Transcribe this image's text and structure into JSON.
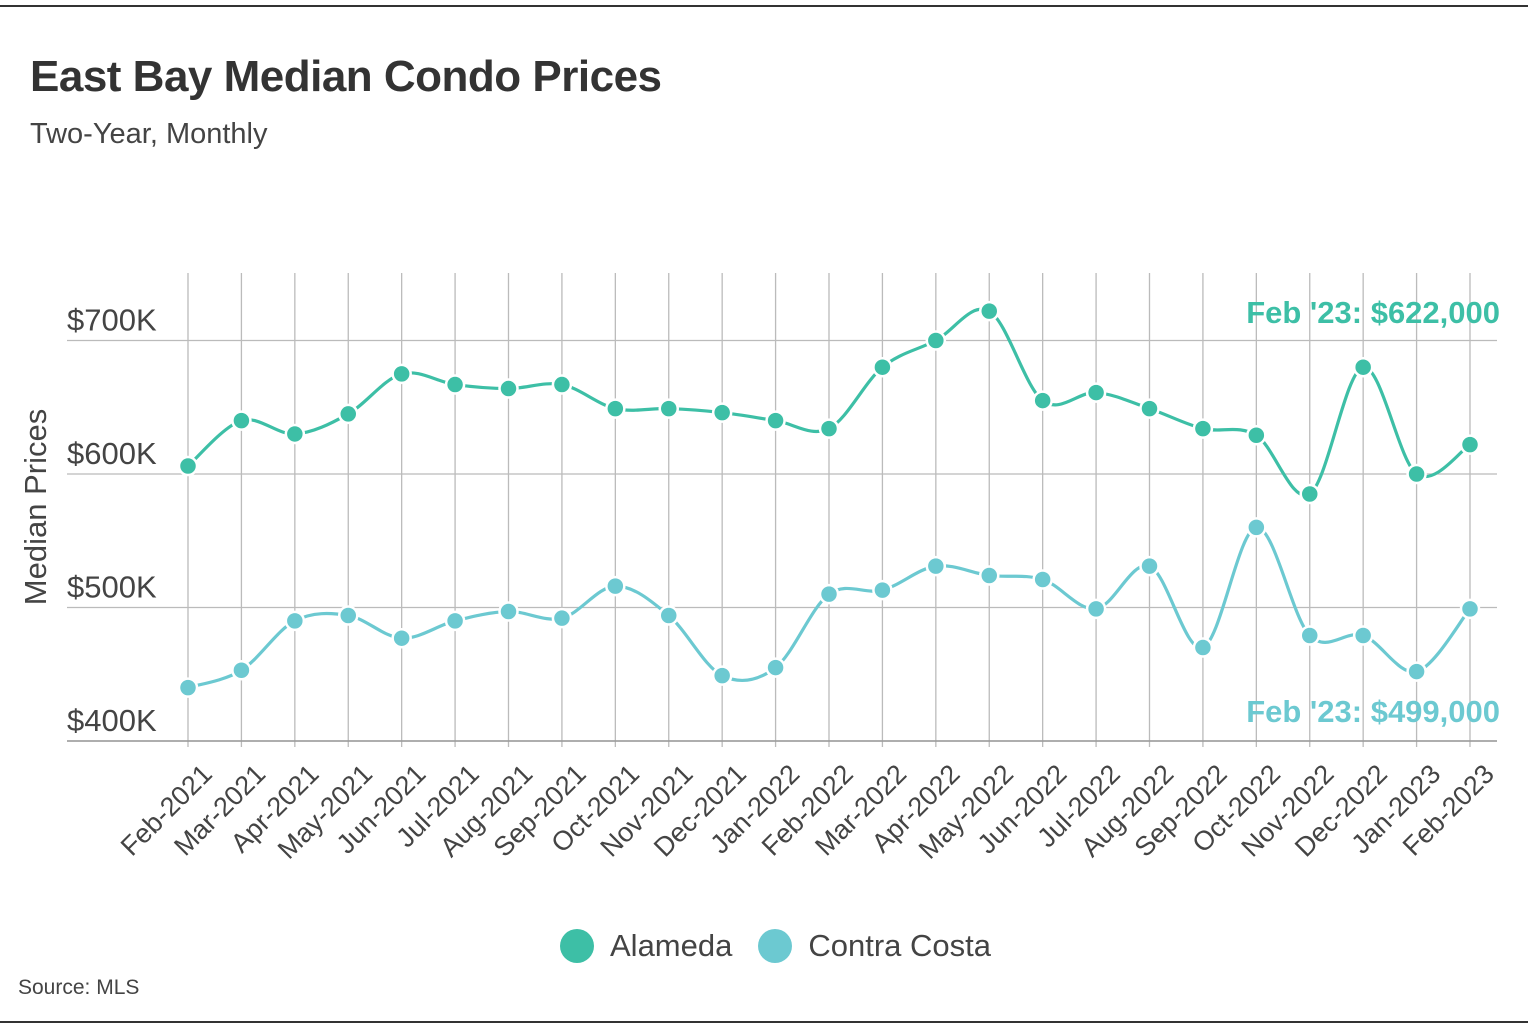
{
  "header": {
    "title": "East Bay Median Condo Prices",
    "subtitle": "Two-Year, Monthly"
  },
  "footer": {
    "source": "Source:  MLS"
  },
  "colors": {
    "alameda": "#3dbfa6",
    "contra_costa": "#6cc9d1",
    "grid": "#bbbbbb",
    "text": "#333333"
  },
  "chart_data": {
    "type": "line",
    "title": "East Bay Median Condo Prices",
    "subtitle": "Two-Year, Monthly",
    "xlabel": "",
    "ylabel": "Median Prices",
    "ylim": [
      400000,
      750000
    ],
    "yticks": [
      400000,
      500000,
      600000,
      700000
    ],
    "ytick_labels": [
      "$400K",
      "$500K",
      "$600K",
      "$700K"
    ],
    "grid": true,
    "legend_position": "bottom-center",
    "categories": [
      "Feb-2021",
      "Mar-2021",
      "Apr-2021",
      "May-2021",
      "Jun-2021",
      "Jul-2021",
      "Aug-2021",
      "Sep-2021",
      "Oct-2021",
      "Nov-2021",
      "Dec-2021",
      "Jan-2022",
      "Feb-2022",
      "Mar-2022",
      "Apr-2022",
      "May-2022",
      "Jun-2022",
      "Jul-2022",
      "Aug-2022",
      "Sep-2022",
      "Oct-2022",
      "Nov-2022",
      "Dec-2022",
      "Jan-2023",
      "Feb-2023"
    ],
    "series": [
      {
        "name": "Alameda",
        "color": "#3dbfa6",
        "values": [
          606000,
          640000,
          630000,
          645000,
          675000,
          667000,
          664000,
          667000,
          649000,
          649000,
          646000,
          640000,
          634000,
          680000,
          700000,
          722000,
          655000,
          661000,
          649000,
          634000,
          629000,
          585000,
          680000,
          600000,
          622000
        ],
        "annotation": "Feb '23: $622,000"
      },
      {
        "name": "Contra Costa",
        "color": "#6cc9d1",
        "values": [
          440000,
          453000,
          490000,
          494000,
          477000,
          490000,
          497000,
          492000,
          516000,
          494000,
          449000,
          455000,
          510000,
          513000,
          531000,
          524000,
          521000,
          499000,
          531000,
          470000,
          560000,
          479000,
          479000,
          452000,
          499000
        ],
        "annotation": "Feb '23: $499,000"
      }
    ]
  }
}
